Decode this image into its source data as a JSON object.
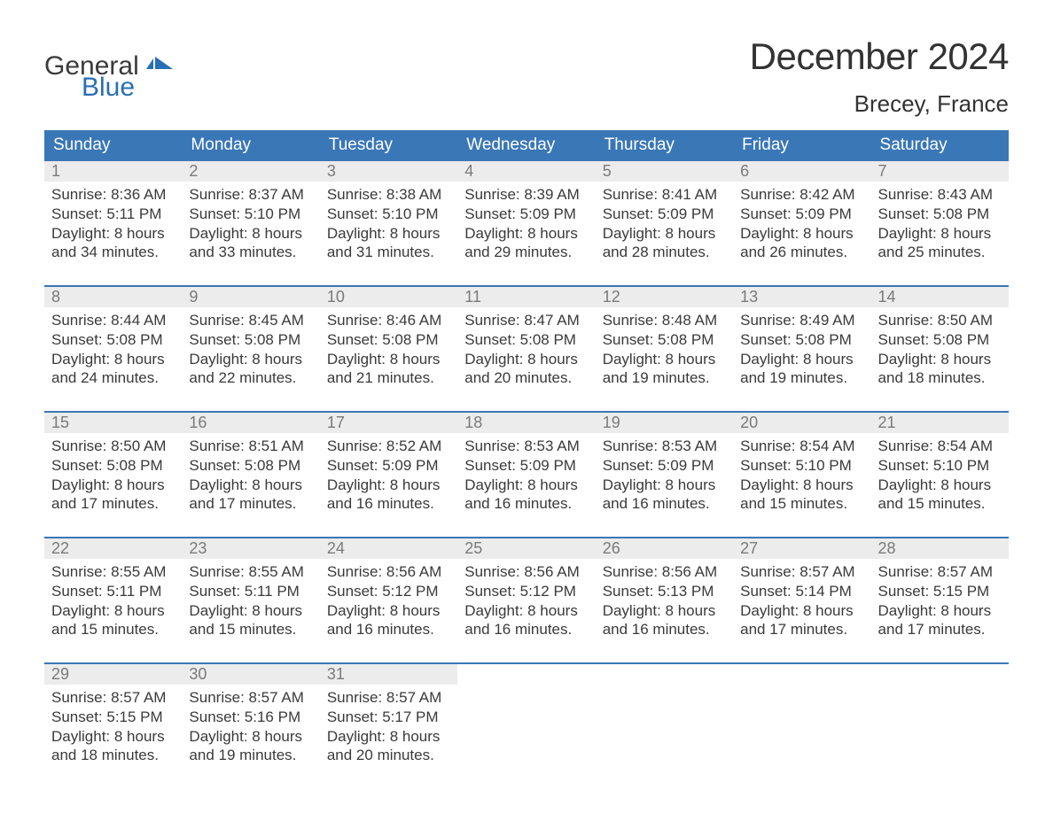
{
  "brand": {
    "line1": "General",
    "line2": "Blue",
    "logo_color": "#2a6fb5"
  },
  "title": "December 2024",
  "location": "Brecey, France",
  "colors": {
    "header_bg": "#3a77b7",
    "header_text": "#ffffff",
    "daynum_bg": "#ececec",
    "daynum_text": "#7a7a7a",
    "body_text": "#3a3a3a",
    "rule": "#3a77b7",
    "page_bg": "#ffffff"
  },
  "typography": {
    "title_fontsize": 42,
    "location_fontsize": 26,
    "dow_fontsize": 19,
    "daynum_fontsize": 18,
    "body_fontsize": 17,
    "font_family": "Arial"
  },
  "day_labels": [
    "Sunday",
    "Monday",
    "Tuesday",
    "Wednesday",
    "Thursday",
    "Friday",
    "Saturday"
  ],
  "weeks": [
    [
      {
        "n": "1",
        "sr": "Sunrise: 8:36 AM",
        "ss": "Sunset: 5:11 PM",
        "d1": "Daylight: 8 hours",
        "d2": "and 34 minutes."
      },
      {
        "n": "2",
        "sr": "Sunrise: 8:37 AM",
        "ss": "Sunset: 5:10 PM",
        "d1": "Daylight: 8 hours",
        "d2": "and 33 minutes."
      },
      {
        "n": "3",
        "sr": "Sunrise: 8:38 AM",
        "ss": "Sunset: 5:10 PM",
        "d1": "Daylight: 8 hours",
        "d2": "and 31 minutes."
      },
      {
        "n": "4",
        "sr": "Sunrise: 8:39 AM",
        "ss": "Sunset: 5:09 PM",
        "d1": "Daylight: 8 hours",
        "d2": "and 29 minutes."
      },
      {
        "n": "5",
        "sr": "Sunrise: 8:41 AM",
        "ss": "Sunset: 5:09 PM",
        "d1": "Daylight: 8 hours",
        "d2": "and 28 minutes."
      },
      {
        "n": "6",
        "sr": "Sunrise: 8:42 AM",
        "ss": "Sunset: 5:09 PM",
        "d1": "Daylight: 8 hours",
        "d2": "and 26 minutes."
      },
      {
        "n": "7",
        "sr": "Sunrise: 8:43 AM",
        "ss": "Sunset: 5:08 PM",
        "d1": "Daylight: 8 hours",
        "d2": "and 25 minutes."
      }
    ],
    [
      {
        "n": "8",
        "sr": "Sunrise: 8:44 AM",
        "ss": "Sunset: 5:08 PM",
        "d1": "Daylight: 8 hours",
        "d2": "and 24 minutes."
      },
      {
        "n": "9",
        "sr": "Sunrise: 8:45 AM",
        "ss": "Sunset: 5:08 PM",
        "d1": "Daylight: 8 hours",
        "d2": "and 22 minutes."
      },
      {
        "n": "10",
        "sr": "Sunrise: 8:46 AM",
        "ss": "Sunset: 5:08 PM",
        "d1": "Daylight: 8 hours",
        "d2": "and 21 minutes."
      },
      {
        "n": "11",
        "sr": "Sunrise: 8:47 AM",
        "ss": "Sunset: 5:08 PM",
        "d1": "Daylight: 8 hours",
        "d2": "and 20 minutes."
      },
      {
        "n": "12",
        "sr": "Sunrise: 8:48 AM",
        "ss": "Sunset: 5:08 PM",
        "d1": "Daylight: 8 hours",
        "d2": "and 19 minutes."
      },
      {
        "n": "13",
        "sr": "Sunrise: 8:49 AM",
        "ss": "Sunset: 5:08 PM",
        "d1": "Daylight: 8 hours",
        "d2": "and 19 minutes."
      },
      {
        "n": "14",
        "sr": "Sunrise: 8:50 AM",
        "ss": "Sunset: 5:08 PM",
        "d1": "Daylight: 8 hours",
        "d2": "and 18 minutes."
      }
    ],
    [
      {
        "n": "15",
        "sr": "Sunrise: 8:50 AM",
        "ss": "Sunset: 5:08 PM",
        "d1": "Daylight: 8 hours",
        "d2": "and 17 minutes."
      },
      {
        "n": "16",
        "sr": "Sunrise: 8:51 AM",
        "ss": "Sunset: 5:08 PM",
        "d1": "Daylight: 8 hours",
        "d2": "and 17 minutes."
      },
      {
        "n": "17",
        "sr": "Sunrise: 8:52 AM",
        "ss": "Sunset: 5:09 PM",
        "d1": "Daylight: 8 hours",
        "d2": "and 16 minutes."
      },
      {
        "n": "18",
        "sr": "Sunrise: 8:53 AM",
        "ss": "Sunset: 5:09 PM",
        "d1": "Daylight: 8 hours",
        "d2": "and 16 minutes."
      },
      {
        "n": "19",
        "sr": "Sunrise: 8:53 AM",
        "ss": "Sunset: 5:09 PM",
        "d1": "Daylight: 8 hours",
        "d2": "and 16 minutes."
      },
      {
        "n": "20",
        "sr": "Sunrise: 8:54 AM",
        "ss": "Sunset: 5:10 PM",
        "d1": "Daylight: 8 hours",
        "d2": "and 15 minutes."
      },
      {
        "n": "21",
        "sr": "Sunrise: 8:54 AM",
        "ss": "Sunset: 5:10 PM",
        "d1": "Daylight: 8 hours",
        "d2": "and 15 minutes."
      }
    ],
    [
      {
        "n": "22",
        "sr": "Sunrise: 8:55 AM",
        "ss": "Sunset: 5:11 PM",
        "d1": "Daylight: 8 hours",
        "d2": "and 15 minutes."
      },
      {
        "n": "23",
        "sr": "Sunrise: 8:55 AM",
        "ss": "Sunset: 5:11 PM",
        "d1": "Daylight: 8 hours",
        "d2": "and 15 minutes."
      },
      {
        "n": "24",
        "sr": "Sunrise: 8:56 AM",
        "ss": "Sunset: 5:12 PM",
        "d1": "Daylight: 8 hours",
        "d2": "and 16 minutes."
      },
      {
        "n": "25",
        "sr": "Sunrise: 8:56 AM",
        "ss": "Sunset: 5:12 PM",
        "d1": "Daylight: 8 hours",
        "d2": "and 16 minutes."
      },
      {
        "n": "26",
        "sr": "Sunrise: 8:56 AM",
        "ss": "Sunset: 5:13 PM",
        "d1": "Daylight: 8 hours",
        "d2": "and 16 minutes."
      },
      {
        "n": "27",
        "sr": "Sunrise: 8:57 AM",
        "ss": "Sunset: 5:14 PM",
        "d1": "Daylight: 8 hours",
        "d2": "and 17 minutes."
      },
      {
        "n": "28",
        "sr": "Sunrise: 8:57 AM",
        "ss": "Sunset: 5:15 PM",
        "d1": "Daylight: 8 hours",
        "d2": "and 17 minutes."
      }
    ],
    [
      {
        "n": "29",
        "sr": "Sunrise: 8:57 AM",
        "ss": "Sunset: 5:15 PM",
        "d1": "Daylight: 8 hours",
        "d2": "and 18 minutes."
      },
      {
        "n": "30",
        "sr": "Sunrise: 8:57 AM",
        "ss": "Sunset: 5:16 PM",
        "d1": "Daylight: 8 hours",
        "d2": "and 19 minutes."
      },
      {
        "n": "31",
        "sr": "Sunrise: 8:57 AM",
        "ss": "Sunset: 5:17 PM",
        "d1": "Daylight: 8 hours",
        "d2": "and 20 minutes."
      },
      null,
      null,
      null,
      null
    ]
  ]
}
